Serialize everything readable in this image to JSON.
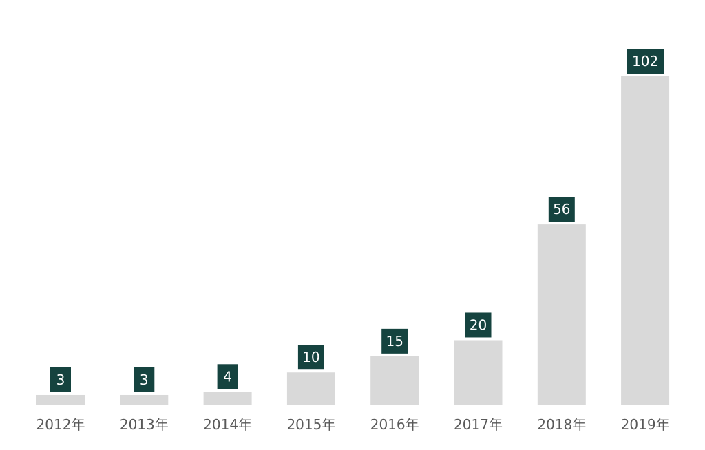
{
  "chart_data": {
    "type": "bar",
    "categories": [
      "2012年",
      "2013年",
      "2014年",
      "2015年",
      "2016年",
      "2017年",
      "2018年",
      "2019年"
    ],
    "values": [
      3,
      3,
      4,
      10,
      15,
      20,
      56,
      102
    ],
    "title": "",
    "xlabel": "",
    "ylabel": "",
    "ylim": [
      0,
      102
    ],
    "grid": false,
    "legend": "none",
    "data_labels": true
  },
  "colors": {
    "bar": "#d9d9d9",
    "label_bg": "#15433f",
    "label_text": "#ffffff",
    "axis_text": "#595959",
    "axis_line": "#bfbfbf"
  }
}
